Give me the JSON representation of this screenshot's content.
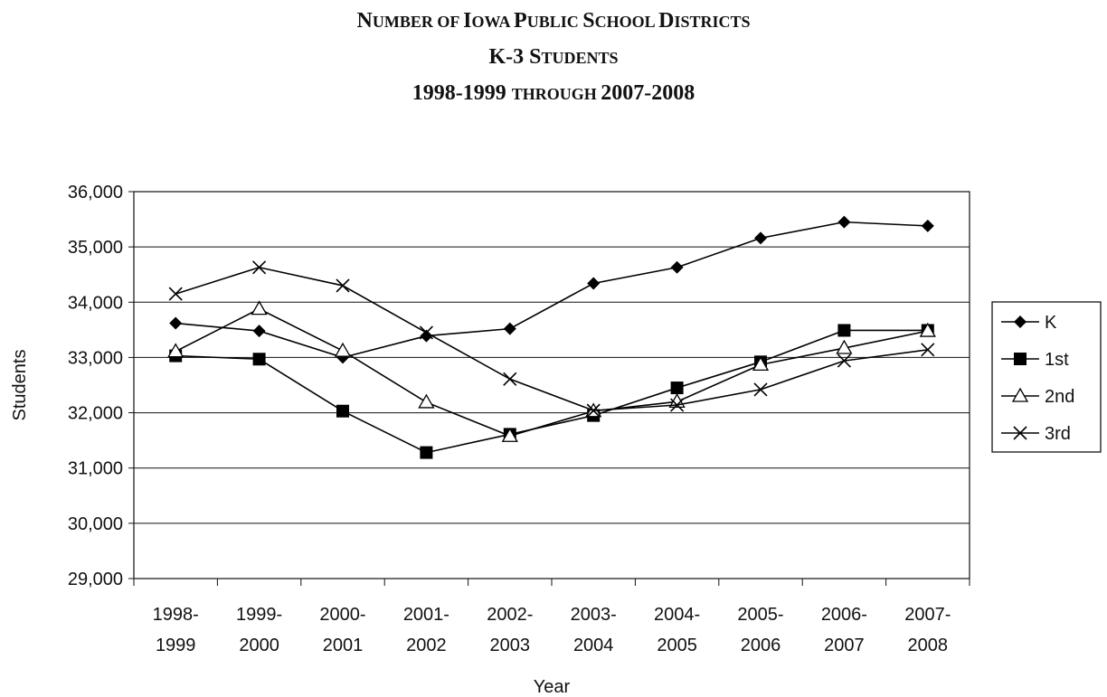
{
  "title_lines": [
    [
      {
        "t": "N",
        "big": true
      },
      {
        "t": "UMBER OF ",
        "big": false
      },
      {
        "t": "I",
        "big": true
      },
      {
        "t": "OWA ",
        "big": false
      },
      {
        "t": "P",
        "big": true
      },
      {
        "t": "UBLIC ",
        "big": false
      },
      {
        "t": "S",
        "big": true
      },
      {
        "t": "CHOOL ",
        "big": false
      },
      {
        "t": "D",
        "big": true
      },
      {
        "t": "ISTRICTS",
        "big": false
      }
    ],
    [
      {
        "t": "K-3 S",
        "big": true
      },
      {
        "t": "TUDENTS",
        "big": false
      }
    ],
    [
      {
        "t": "1998-1999 ",
        "big": true
      },
      {
        "t": "THROUGH ",
        "big": false
      },
      {
        "t": " 2007-2008",
        "big": true
      }
    ]
  ],
  "chart_data": {
    "type": "line",
    "title": "NUMBER OF IOWA PUBLIC SCHOOL DISTRICTS K-3 STUDENTS 1998-1999 THROUGH 2007-2008",
    "xlabel": "Year",
    "ylabel": "Students",
    "ylim": [
      29000,
      36000
    ],
    "yticks": [
      29000,
      30000,
      31000,
      32000,
      33000,
      34000,
      35000,
      36000
    ],
    "ytick_labels": [
      "29,000",
      "30,000",
      "31,000",
      "32,000",
      "33,000",
      "34,000",
      "35,000",
      "36,000"
    ],
    "grid": true,
    "legend_position": "right",
    "categories": [
      [
        "1998-",
        "1999"
      ],
      [
        "1999-",
        "2000"
      ],
      [
        "2000-",
        "2001"
      ],
      [
        "2001-",
        "2002"
      ],
      [
        "2002-",
        "2003"
      ],
      [
        "2003-",
        "2004"
      ],
      [
        "2004-",
        "2005"
      ],
      [
        "2005-",
        "2006"
      ],
      [
        "2006-",
        "2007"
      ],
      [
        "2007-",
        "2008"
      ]
    ],
    "series": [
      {
        "name": "K",
        "marker": "diamond",
        "values": [
          33620,
          33480,
          33000,
          33390,
          33520,
          34340,
          34630,
          35160,
          35450,
          35380
        ]
      },
      {
        "name": "1st",
        "marker": "square",
        "values": [
          33030,
          32970,
          32030,
          31280,
          31610,
          31950,
          32450,
          32920,
          33490,
          33490
        ]
      },
      {
        "name": "2nd",
        "marker": "triangle",
        "values": [
          33110,
          33880,
          33120,
          32190,
          31580,
          32030,
          32200,
          32870,
          33170,
          33480
        ]
      },
      {
        "name": "3rd",
        "marker": "x",
        "values": [
          34150,
          34630,
          34300,
          33450,
          32610,
          32040,
          32140,
          32420,
          32940,
          33140
        ]
      }
    ]
  }
}
